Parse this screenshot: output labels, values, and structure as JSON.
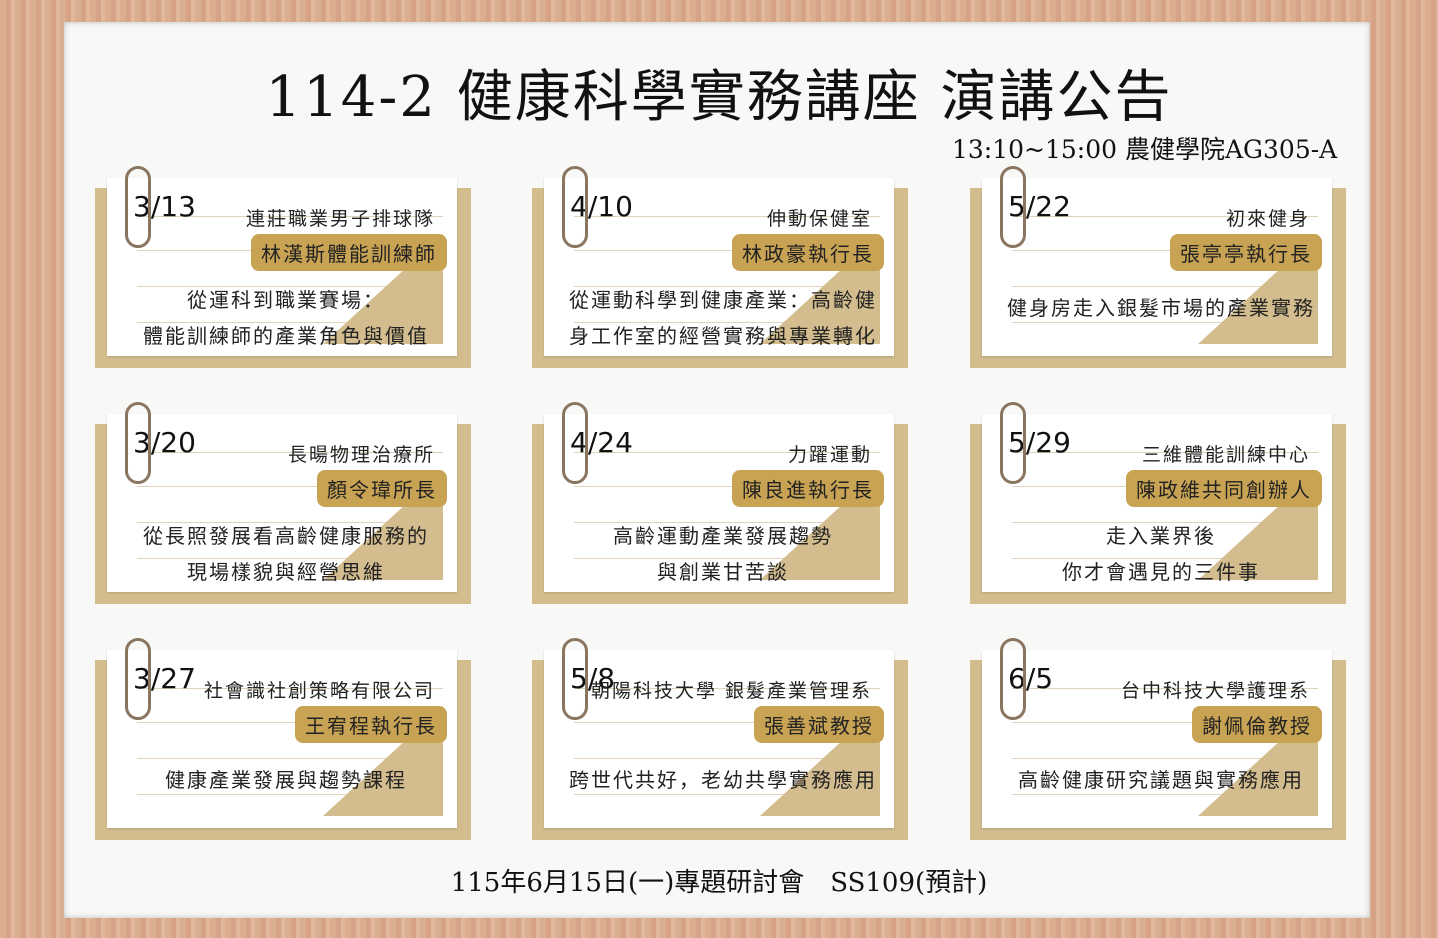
{
  "title": "114-2 健康科學實務講座 演講公告",
  "subtitle": "13:10~15:00 農健學院AG305-A",
  "footer": "115年6月15日(一)專題研討會　SS109(預計)",
  "colors": {
    "frame": "#d9a98a",
    "card": "#d3bd8e",
    "badge": "#c8a353"
  },
  "cards": [
    {
      "date": "3/13",
      "org": "連莊職業男子排球隊",
      "name": "林漢斯體能訓練師",
      "topic": [
        "從運科到職業賽場：",
        "體能訓練師的產業角色與價值"
      ]
    },
    {
      "date": "4/10",
      "org": "伸動保健室",
      "name": "林政豪執行長",
      "topic": [
        "從運動科學到健康產業：高齡健",
        "身工作室的經營實務與專業轉化"
      ]
    },
    {
      "date": "5/22",
      "org": "初來健身",
      "name": "張亭亭執行長",
      "topic": [
        "健身房走入銀髮市場的產業實務"
      ]
    },
    {
      "date": "3/20",
      "org": "長暘物理治療所",
      "name": "顏令瑋所長",
      "topic": [
        "從長照發展看高齡健康服務的",
        "現場樣貌與經營思維"
      ]
    },
    {
      "date": "4/24",
      "org": "力躍運動",
      "name": "陳良進執行長",
      "topic": [
        "高齡運動產業發展趨勢",
        "與創業甘苦談"
      ]
    },
    {
      "date": "5/29",
      "org": "三維體能訓練中心",
      "name": "陳政維共同創辦人",
      "topic": [
        "走入業界後",
        "你才會遇見的三件事"
      ]
    },
    {
      "date": "3/27",
      "org": "社會識社創策略有限公司",
      "name": "王宥程執行長",
      "topic": [
        "健康產業發展與趨勢課程"
      ]
    },
    {
      "date": "5/8",
      "org": "朝陽科技大學 銀髮產業管理系",
      "name": "張善斌教授",
      "topic": [
        "跨世代共好，老幼共學實務應用"
      ]
    },
    {
      "date": "6/5",
      "org": "台中科技大學護理系",
      "name": "謝佩倫教授",
      "topic": [
        "高齡健康研究議題與實務應用"
      ]
    }
  ]
}
